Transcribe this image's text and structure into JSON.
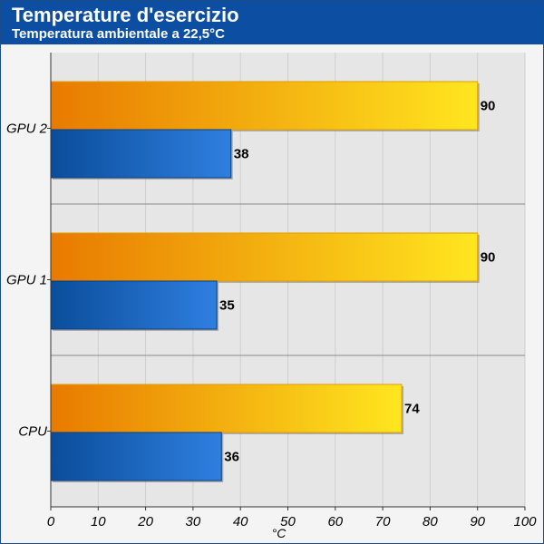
{
  "header": {
    "title": "Temperature d'esercizio",
    "subtitle": "Temperatura ambientale a 22,5°C"
  },
  "colors": {
    "background": "#f4f4f4",
    "header": "#0b4ea2",
    "plot_background": "#e6e6e6",
    "orange_start": "#e87a00",
    "orange_end": "#ffe61f",
    "blue_start": "#0a4d9a",
    "blue_end": "#2f7fe0"
  },
  "chart_data": {
    "type": "bar",
    "orientation": "horizontal",
    "title": "Temperature d'esercizio",
    "subtitle": "Temperatura ambientale a 22,5°C",
    "categories": [
      "GPU 2",
      "GPU 1",
      "CPU"
    ],
    "series": [
      {
        "color": "orange",
        "values": [
          90,
          90,
          74
        ]
      },
      {
        "color": "blue",
        "values": [
          38,
          35,
          36
        ]
      }
    ],
    "xlabel": "°C",
    "ylabel": "",
    "xlim": [
      0,
      100
    ],
    "xticks": [
      0,
      10,
      20,
      30,
      40,
      50,
      60,
      70,
      80,
      90,
      100
    ],
    "grid": true,
    "legend": "none",
    "data_labels": true
  }
}
